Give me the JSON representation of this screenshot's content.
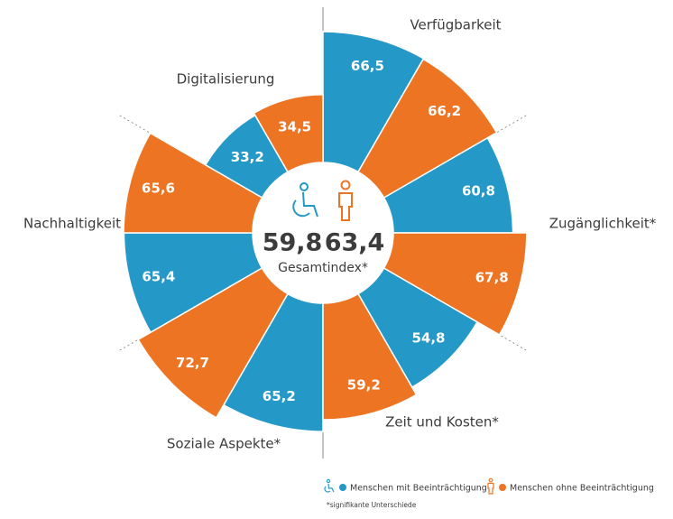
{
  "chart_data": {
    "type": "polar_bar",
    "categories": [
      "Verfügbarkeit",
      "Zugänglichkeit*",
      "Zeit und Kosten*",
      "Soziale Aspekte*",
      "Nachhaltigkeit",
      "Digitalisierung"
    ],
    "series": [
      {
        "name": "Menschen mit Beeinträchtigung",
        "color": "#2498c6",
        "values": [
          66.5,
          60.8,
          54.8,
          65.2,
          65.4,
          33.2
        ],
        "value_labels": [
          "66,5",
          "60,8",
          "54,8",
          "65,2",
          "65,4",
          "33,2"
        ]
      },
      {
        "name": "Menschen ohne Beeinträchtigung",
        "color": "#ec7423",
        "values": [
          66.2,
          67.8,
          59.2,
          72.7,
          65.6,
          34.5
        ],
        "value_labels": [
          "66,2",
          "67,8",
          "59,2",
          "72,7",
          "65,6",
          "34,5"
        ]
      }
    ],
    "rlim": [
      0,
      100
    ],
    "center": {
      "values": [
        59.8,
        63.4
      ],
      "value_labels": [
        "59,8",
        "63,4"
      ],
      "label": "Gesamtindex*"
    },
    "footnote": "*signifikante Unterschiede"
  }
}
